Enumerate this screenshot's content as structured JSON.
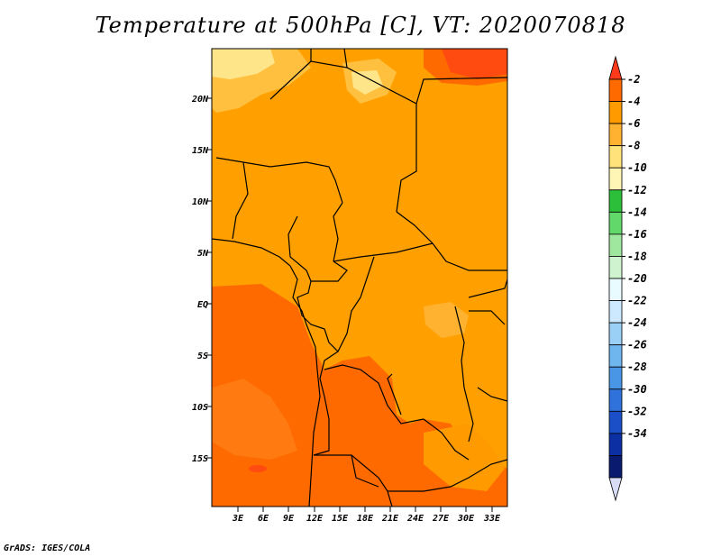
{
  "title": "Temperature at 500hPa [C], VT: 2020070818",
  "credit": "GrADS: IGES/COLA",
  "map": {
    "lat_labels": [
      "20N",
      "15N",
      "10N",
      "5N",
      "EQ",
      "5S",
      "10S",
      "15S"
    ],
    "lon_labels": [
      "3E",
      "6E",
      "9E",
      "12E",
      "15E",
      "18E",
      "21E",
      "24E",
      "27E",
      "30E",
      "33E"
    ]
  },
  "colorbar": {
    "labels": [
      "-2",
      "-4",
      "-6",
      "-8",
      "-10",
      "-12",
      "-14",
      "-16",
      "-18",
      "-20",
      "-22",
      "-24",
      "-26",
      "-28",
      "-30",
      "-32",
      "-34"
    ],
    "colors": [
      "#ff3a1a",
      "#ff6a00",
      "#ff9a00",
      "#ffb230",
      "#ffe37a",
      "#fff6b6",
      "#2bbf3a",
      "#63d86a",
      "#9fe79f",
      "#cff3cf",
      "#e9fbff",
      "#cce9ff",
      "#9bd0f6",
      "#6fb5ee",
      "#4a96e6",
      "#2f72dc",
      "#1a4fc7",
      "#0c2fa3",
      "#091a6f",
      "#d8dcf5"
    ]
  }
}
